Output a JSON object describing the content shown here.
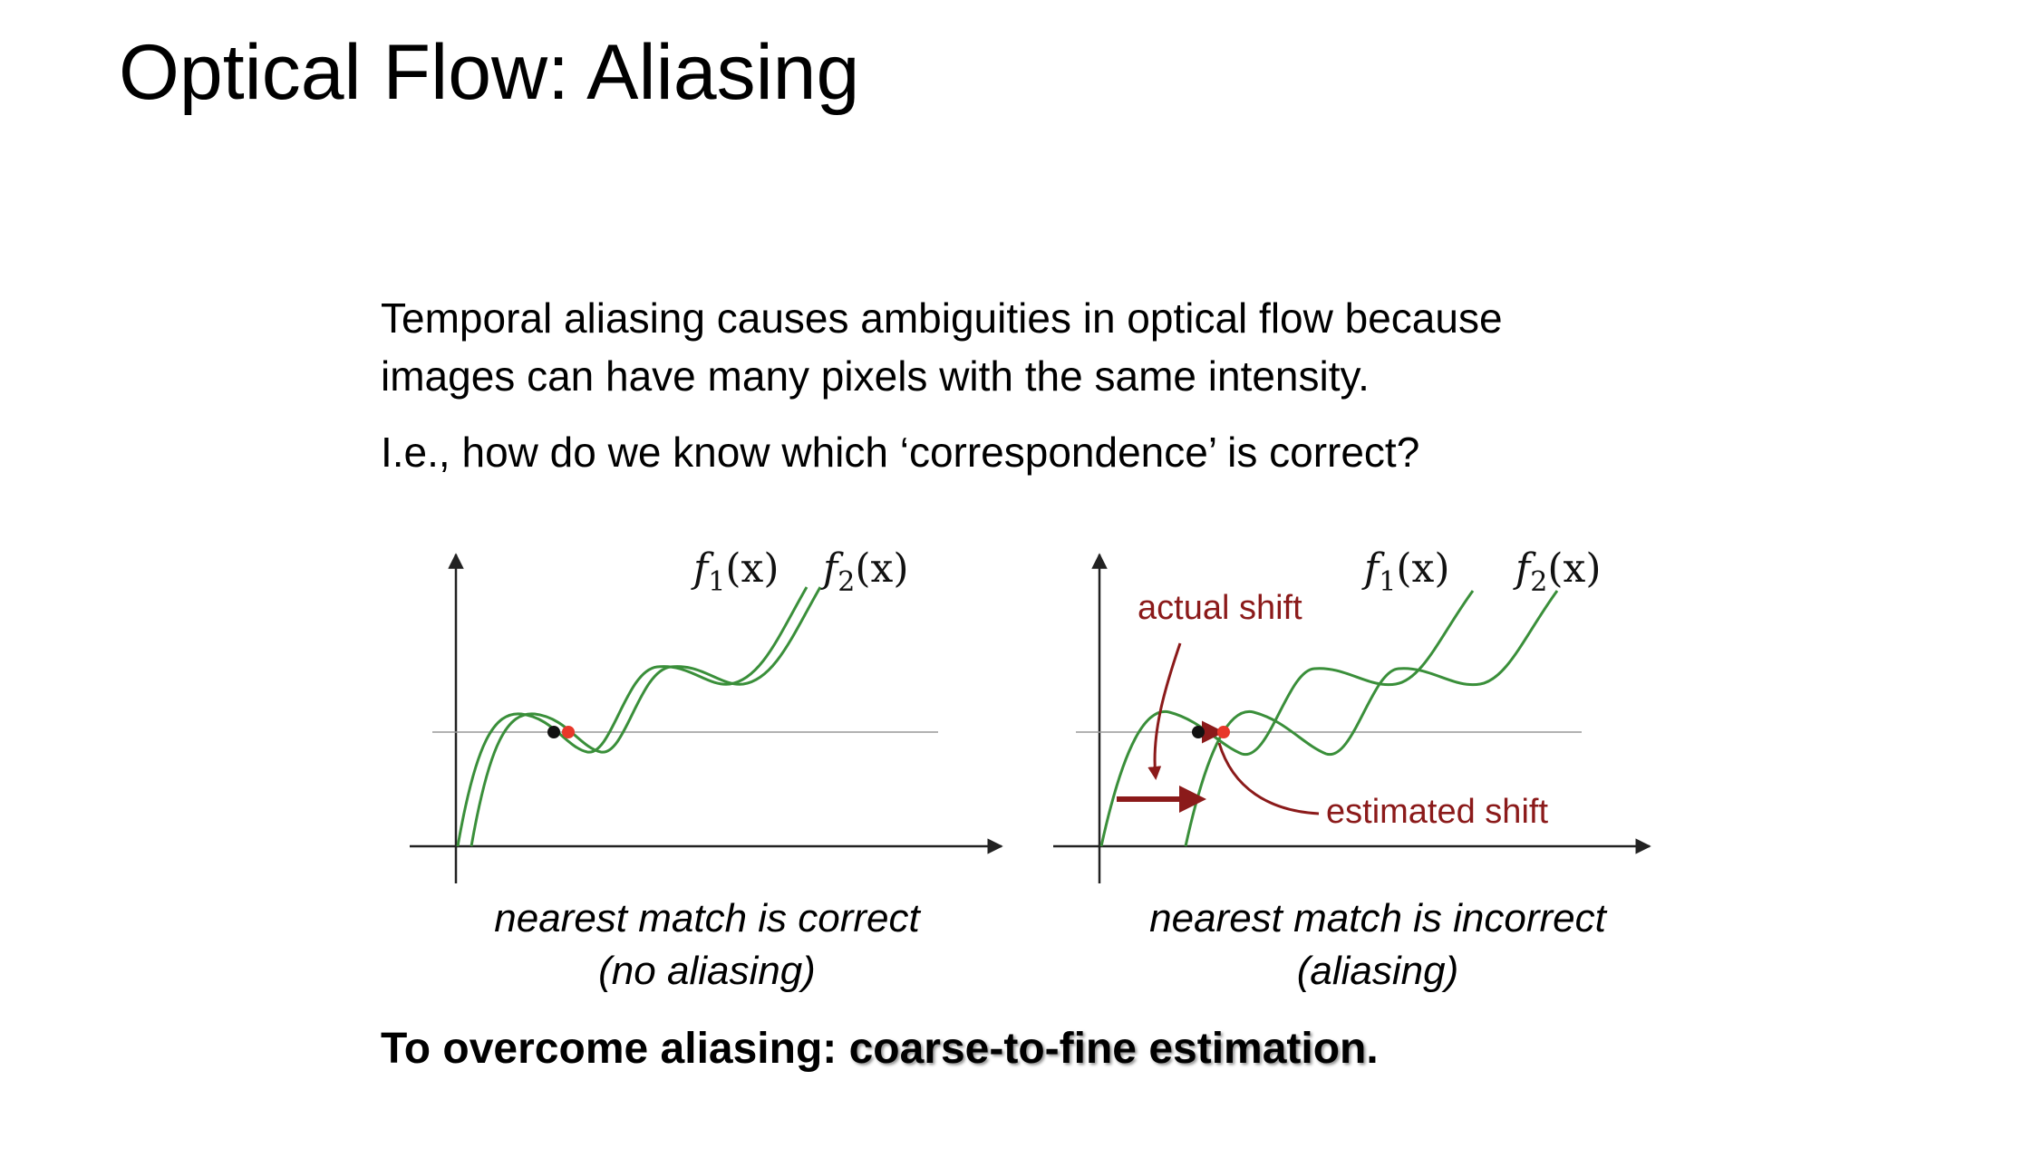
{
  "title": "Optical Flow: Aliasing",
  "intro": {
    "line1": "Temporal aliasing causes ambiguities in optical flow because",
    "line2": "images can have many pixels with the same intensity.",
    "line3": "I.e., how do we know which ‘correspondence’ is correct?"
  },
  "left_panel": {
    "f1_name": "f",
    "f1_sub": "1",
    "f1_arg": "(x)",
    "f2_name": "f",
    "f2_sub": "2",
    "f2_arg": "(x)",
    "caption_line1": "nearest match is correct",
    "caption_line2": "(no aliasing)"
  },
  "right_panel": {
    "f1_name": "f",
    "f1_sub": "1",
    "f1_arg": "(x)",
    "f2_name": "f",
    "f2_sub": "2",
    "f2_arg": "(x)",
    "actual_shift_label": "actual shift",
    "estimated_shift_label": "estimated shift",
    "caption_line1": "nearest match is incorrect",
    "caption_line2": "(aliasing)"
  },
  "conclusion": {
    "prefix": "To overcome aliasing: ",
    "emphasis": "coarse-to-fine estimation",
    "suffix": "."
  },
  "colors": {
    "curve": "#3a8f3a",
    "annotation": "#8b1a1a",
    "point_f1": "#111111",
    "point_f2": "#e8372a"
  }
}
